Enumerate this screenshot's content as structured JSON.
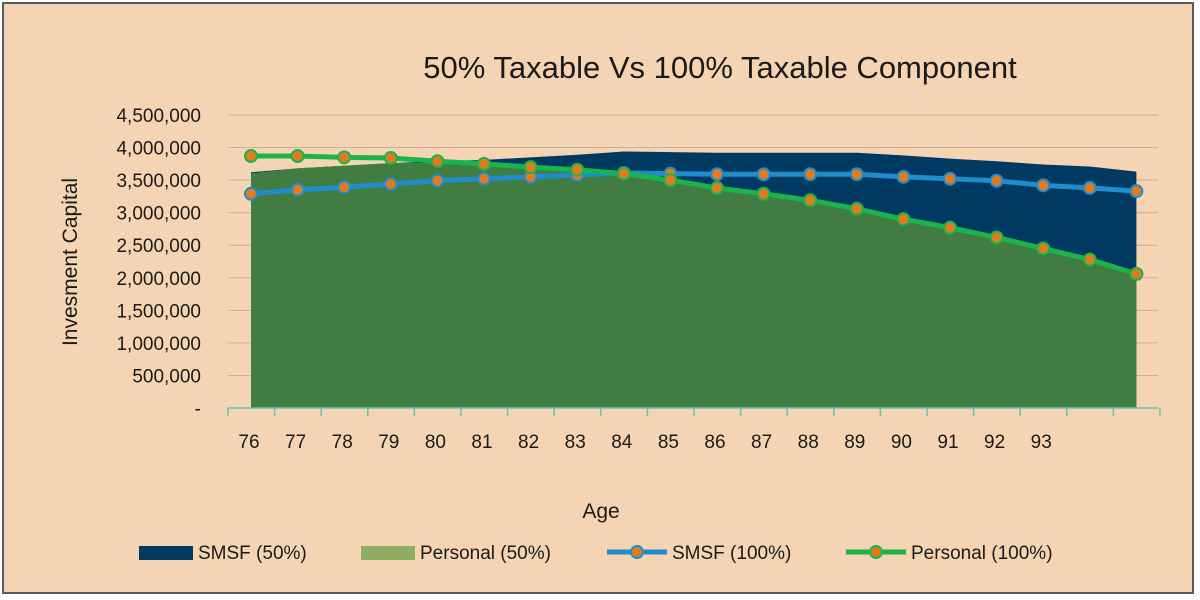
{
  "chart_data": {
    "type": "area",
    "title": "50% Taxable Vs 100% Taxable Component",
    "xlabel": "Age",
    "ylabel": "Invesment Capital",
    "ylim": [
      0,
      4500000
    ],
    "yticks": [
      0,
      500000,
      1000000,
      1500000,
      2000000,
      2500000,
      3000000,
      3500000,
      4000000,
      4500000
    ],
    "ytick_labels": [
      "-",
      "500,000",
      "1,000,000",
      "1,500,000",
      "2,000,000",
      "2,500,000",
      "3,000,000",
      "3,500,000",
      "4,000,000",
      "4,500,000"
    ],
    "categories": [
      "76",
      "77",
      "78",
      "79",
      "80",
      "81",
      "82",
      "83",
      "84",
      "85",
      "86",
      "87",
      "88",
      "89",
      "90",
      "91",
      "92",
      "93",
      "",
      ""
    ],
    "grid": true,
    "legend_position": "bottom",
    "series": [
      {
        "name": "SMSF (50%)",
        "type": "area",
        "color": "#003a63",
        "values": [
          3620000,
          3680000,
          3720000,
          3760000,
          3790000,
          3810000,
          3850000,
          3890000,
          3940000,
          3930000,
          3920000,
          3920000,
          3920000,
          3920000,
          3880000,
          3830000,
          3790000,
          3740000,
          3710000,
          3630000
        ]
      },
      {
        "name": "Personal (50%)",
        "type": "area",
        "color": "#8fad62",
        "values": [
          3600000,
          3680000,
          3720000,
          3760000,
          3760000,
          3740000,
          3700000,
          3660000,
          3600000,
          3500000,
          3380000,
          3290000,
          3190000,
          3060000,
          2900000,
          2770000,
          2620000,
          2450000,
          2280000,
          2060000
        ]
      },
      {
        "name": "SMSF (100%)",
        "type": "line",
        "color": "#1f8dcc",
        "marker_color": "#e07b20",
        "values": [
          3290000,
          3350000,
          3390000,
          3440000,
          3490000,
          3520000,
          3550000,
          3580000,
          3610000,
          3600000,
          3590000,
          3590000,
          3590000,
          3590000,
          3550000,
          3520000,
          3490000,
          3420000,
          3380000,
          3330000
        ]
      },
      {
        "name": "Personal (100%)",
        "type": "line",
        "color": "#19b44a",
        "marker_color": "#e07b20",
        "values": [
          3870000,
          3870000,
          3850000,
          3840000,
          3790000,
          3750000,
          3700000,
          3660000,
          3600000,
          3500000,
          3380000,
          3290000,
          3190000,
          3060000,
          2900000,
          2770000,
          2620000,
          2450000,
          2280000,
          2060000
        ]
      }
    ],
    "personal_area_fill_below": "#417d42"
  }
}
